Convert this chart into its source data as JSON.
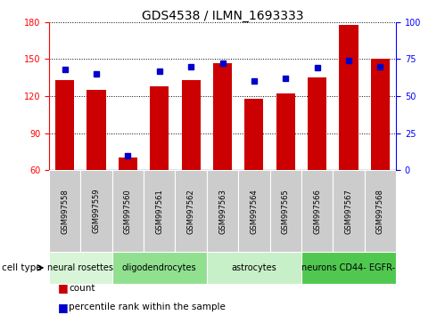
{
  "title": "GDS4538 / ILMN_1693333",
  "samples": [
    "GSM997558",
    "GSM997559",
    "GSM997560",
    "GSM997561",
    "GSM997562",
    "GSM997563",
    "GSM997564",
    "GSM997565",
    "GSM997566",
    "GSM997567",
    "GSM997568"
  ],
  "count_values": [
    133,
    125,
    70,
    128,
    133,
    147,
    118,
    122,
    135,
    178,
    150
  ],
  "percentile_values": [
    68,
    65,
    10,
    67,
    70,
    72,
    60,
    62,
    69,
    74,
    70
  ],
  "ylim_left": [
    60,
    180
  ],
  "ylim_right": [
    0,
    100
  ],
  "yticks_left": [
    60,
    90,
    120,
    150,
    180
  ],
  "yticks_right": [
    0,
    25,
    50,
    75,
    100
  ],
  "bar_color": "#cc0000",
  "scatter_color": "#0000cc",
  "cell_types": [
    {
      "label": "neural rosettes",
      "samples": [
        0,
        1
      ],
      "color": "#d8f5d8"
    },
    {
      "label": "oligodendrocytes",
      "samples": [
        2,
        3,
        4
      ],
      "color": "#90e090"
    },
    {
      "label": "astrocytes",
      "samples": [
        5,
        6,
        7
      ],
      "color": "#c8f0c8"
    },
    {
      "label": "neurons CD44- EGFR-",
      "samples": [
        8,
        9,
        10
      ],
      "color": "#50c850"
    }
  ],
  "legend_count_label": "count",
  "legend_percentile_label": "percentile rank within the sample",
  "cell_type_label": "cell type",
  "tick_label_area_color": "#cccccc",
  "title_fontsize": 10,
  "bar_width": 0.6,
  "label_fontsize": 6,
  "cell_type_fontsize": 7
}
